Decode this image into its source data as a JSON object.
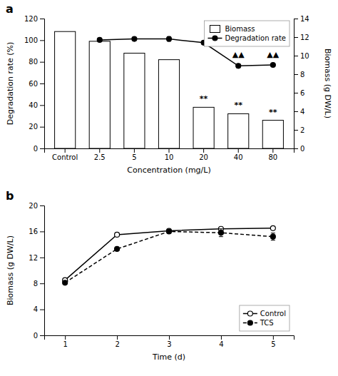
{
  "chart_data": [
    {
      "type": "bar",
      "title": "a",
      "xlabel": "Concentration (mg/L)",
      "ylabel": "Degradation rate (%)",
      "y2label": "Biomass (g DW/L)",
      "categories": [
        "Control",
        "2.5",
        "5",
        "10",
        "20",
        "40",
        "80"
      ],
      "series": [
        {
          "name": "Biomass",
          "type": "bar",
          "color": "white",
          "values": [
            108,
            99,
            88,
            82,
            38,
            32,
            26
          ]
        },
        {
          "name": "Degradation rate",
          "type": "line",
          "color": "black",
          "marker": "circle",
          "line_style": "solid",
          "axis": "y2",
          "values": [
            null,
            11.7,
            11.8,
            11.8,
            11.4,
            8.9,
            9.0
          ],
          "errors": [
            null,
            0.15,
            0.15,
            0.25,
            0.15,
            0.2,
            0.15
          ]
        }
      ],
      "ylim": [
        0,
        120
      ],
      "yticks": [
        0,
        20,
        40,
        60,
        80,
        100,
        120
      ],
      "y2lim": [
        0,
        14
      ],
      "y2ticks": [
        0,
        2,
        4,
        6,
        8,
        10,
        12,
        14
      ],
      "annotations": [
        {
          "text": "**",
          "x": "20",
          "y": 42
        },
        {
          "text": "**",
          "x": "40",
          "y": 36
        },
        {
          "text": "**",
          "x": "80",
          "y": 30
        },
        {
          "text": "▲▲",
          "x": "40",
          "y": 9.7,
          "axis": "y2"
        },
        {
          "text": "▲▲",
          "x": "80",
          "y": 9.7,
          "axis": "y2"
        }
      ],
      "legend": "upper right",
      "grid": false
    },
    {
      "type": "line",
      "title": "b",
      "xlabel": "Time (d)",
      "ylabel": "Biomass (g DW/L)",
      "x": [
        1,
        2,
        3,
        4,
        5
      ],
      "series": [
        {
          "name": "Control",
          "color": "black",
          "marker": "circle-open",
          "line_style": "solid",
          "values": [
            8.5,
            15.5,
            16.1,
            16.4,
            16.5
          ],
          "errors": [
            0.15,
            0.25,
            0.15,
            0.25,
            0.15
          ]
        },
        {
          "name": "TCS",
          "color": "black",
          "marker": "circle",
          "line_style": "dashed",
          "values": [
            8.1,
            13.3,
            16.0,
            15.8,
            15.2
          ],
          "errors": [
            0.15,
            0.25,
            0.15,
            0.6,
            0.55
          ]
        }
      ],
      "xlim": [
        0.6,
        5.4
      ],
      "xticks": [
        1,
        2,
        3,
        4,
        5
      ],
      "ylim": [
        0,
        20
      ],
      "yticks": [
        0,
        4,
        8,
        12,
        16,
        20
      ],
      "legend": "lower right",
      "grid": false
    }
  ]
}
